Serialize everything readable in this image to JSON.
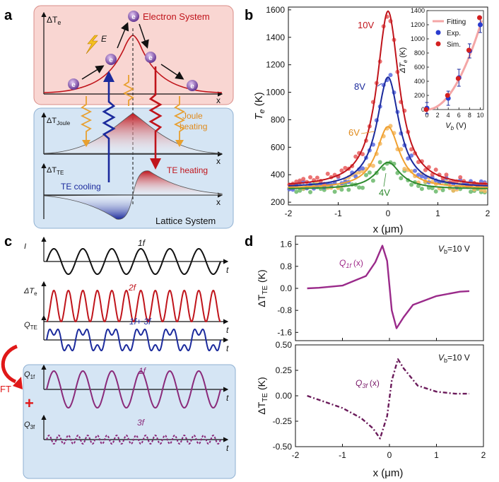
{
  "panel_labels": {
    "a": "a",
    "b": "b",
    "c": "c",
    "d": "d"
  },
  "panel_a": {
    "electron_title": "Electron System",
    "lattice_title": "Lattice System",
    "y_top": "ΔT",
    "y_top_sub": "e",
    "y_mid": "ΔT",
    "y_mid_sub": "Joule",
    "y_bot": "ΔT",
    "y_bot_sub": "TE",
    "x_label": "x",
    "field_label": "E",
    "electron_glyph": "e",
    "joule_label_1": "Joule",
    "joule_label_2": "heating",
    "te_heating": "TE heating",
    "te_cooling": "TE cooling",
    "colors": {
      "electron_bg": "#f9d6d2",
      "lattice_bg": "#d5e5f4",
      "red": "#c0141b",
      "blue": "#1b2a9c",
      "orange": "#f0a030",
      "electron": "#5a2a8a"
    }
  },
  "panel_b": {
    "ylabel": "T",
    "ylabel_sub": "e",
    "ylabel_unit": " (K)",
    "xlabel": "x (μm)",
    "chart_data": {
      "type": "line",
      "title": "",
      "xlabel": "x (μm)",
      "ylabel": "Te (K)",
      "xlim": [
        -2,
        2
      ],
      "ylim": [
        180,
        1620
      ],
      "xticks": [
        "-2",
        "-1",
        "0",
        "1",
        "2"
      ],
      "yticks": [
        "200",
        "400",
        "600",
        "800",
        "1000",
        "1200",
        "1400",
        "1600"
      ],
      "series": [
        {
          "name": "10V",
          "color": "#c0141b",
          "baseline": 310,
          "peak": 1590,
          "width": 0.27
        },
        {
          "name": "8V",
          "color": "#1b2a9c",
          "baseline": 305,
          "peak": 1110,
          "width": 0.27
        },
        {
          "name": "6V",
          "color": "#f0a030",
          "baseline": 300,
          "peak": 750,
          "width": 0.28
        },
        {
          "name": "4V",
          "color": "#2f8a2f",
          "baseline": 295,
          "peak": 490,
          "width": 0.3
        }
      ]
    },
    "inset": {
      "ylabel": "ΔT",
      "ylabel_sub": "e",
      "ylabel_unit": " (K)",
      "xlabel": "V",
      "xlabel_sub": "b",
      "xlabel_unit": " (V)",
      "legend": [
        "Fitting",
        "Exp.",
        "Sim."
      ],
      "chart_data": {
        "type": "scatter",
        "xlim": [
          0,
          10.6
        ],
        "ylim": [
          0,
          1400
        ],
        "xticks": [
          "0",
          "2",
          "4",
          "6",
          "8",
          "10"
        ],
        "yticks": [
          "0",
          "200",
          "400",
          "600",
          "800",
          "1000",
          "1200",
          "1400"
        ],
        "fitting": {
          "x": [
            0,
            2,
            4,
            6,
            8,
            10
          ],
          "y": [
            0,
            50,
            190,
            430,
            760,
            1190
          ]
        },
        "exp": {
          "x": [
            0,
            4,
            6,
            8,
            10
          ],
          "y": [
            20,
            160,
            450,
            830,
            1200
          ],
          "err": [
            80,
            100,
            120,
            100,
            110
          ]
        },
        "sim": {
          "x": [
            0,
            4,
            6,
            8,
            10
          ],
          "y": [
            0,
            200,
            440,
            840,
            1300
          ]
        }
      }
    }
  },
  "panel_c": {
    "rows": [
      {
        "label": "I",
        "annotation": "1f"
      },
      {
        "label": "ΔT",
        "label_sub": "e",
        "annotation": "2f"
      },
      {
        "label": "Q",
        "label_sub": "TE",
        "annotation": "1f+ 3f"
      },
      {
        "label": "Q",
        "label_sub": "1f",
        "annotation": "1f"
      },
      {
        "label": "Q",
        "label_sub": "3f",
        "annotation": "3f"
      }
    ],
    "axis": "t",
    "ft_label": "FT",
    "plus": "+"
  },
  "panel_d": {
    "ylabel": "ΔT",
    "ylabel_sub": "TE",
    "ylabel_unit": " (K)",
    "xlabel": "x (μm)",
    "vb_label": "V",
    "vb_sub": "b",
    "vb_value": "=10 V",
    "top": {
      "annotation": "Q",
      "annotation_sub": "1f",
      "annotation_tail": "(x)",
      "chart_data": {
        "type": "line",
        "xlim": [
          -2,
          2
        ],
        "ylim": [
          -1.9,
          1.9
        ],
        "yticks": [
          "-1.6",
          "-0.8",
          "0.0",
          "0.8",
          "1.6"
        ],
        "x": [
          -1.75,
          -1.5,
          -1.0,
          -0.5,
          -0.3,
          -0.15,
          -0.05,
          0.05,
          0.15,
          0.3,
          0.5,
          1.0,
          1.5,
          1.7
        ],
        "y": [
          0.0,
          0.02,
          0.1,
          0.45,
          0.95,
          1.55,
          1.0,
          -0.8,
          -1.45,
          -1.05,
          -0.6,
          -0.28,
          -0.12,
          -0.1
        ]
      }
    },
    "bottom": {
      "annotation": "Q",
      "annotation_sub": "3f",
      "annotation_tail": "(x)",
      "chart_data": {
        "type": "line",
        "xlim": [
          -2,
          2
        ],
        "ylim": [
          -0.5,
          0.5
        ],
        "xticks": [
          "-2",
          "-1",
          "0",
          "1",
          "2"
        ],
        "yticks": [
          "-0.50",
          "-0.25",
          "0.00",
          "0.25",
          "0.50"
        ],
        "x": [
          -1.75,
          -1.5,
          -1.0,
          -0.6,
          -0.35,
          -0.2,
          -0.05,
          0.05,
          0.18,
          0.3,
          0.6,
          1.0,
          1.4,
          1.7
        ],
        "y": [
          0.0,
          -0.04,
          -0.12,
          -0.22,
          -0.32,
          -0.42,
          -0.2,
          0.15,
          0.36,
          0.27,
          0.1,
          0.04,
          0.02,
          0.02
        ]
      }
    }
  }
}
